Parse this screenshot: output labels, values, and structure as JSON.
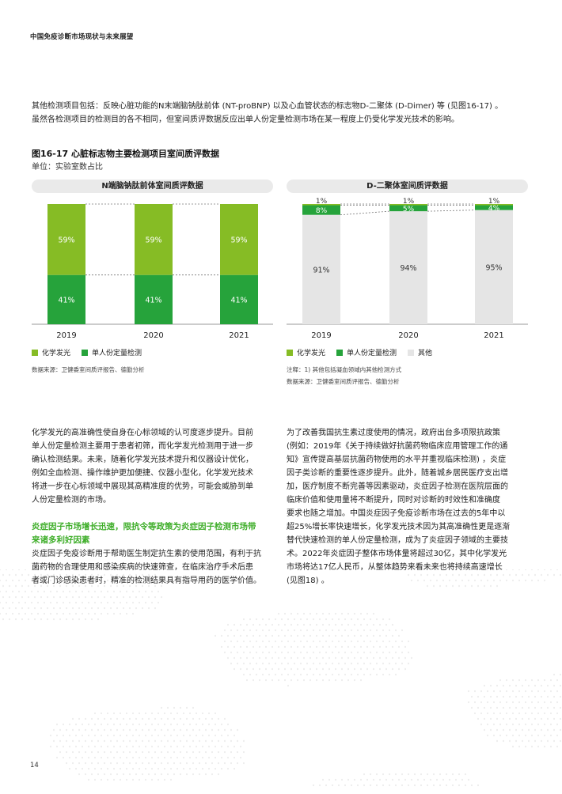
{
  "header": {
    "title": "中国免疫诊断市场现状与未来展望"
  },
  "intro": {
    "line1": "其他检测项目包括：反映心脏功能的N末端脑钠肽前体 (NT-proBNP) 以及心血管状态的标志物D-二聚体 (D-Dimer) 等 (见图16-17) 。",
    "line2": "虽然各检测项目的检测目的各不相同，但室间质评数据反应出单人份定量检测市场在某一程度上仍受化学发光技术的影响。"
  },
  "figure": {
    "title": "图16-17 心脏标志物主要检测项目室间质评数据",
    "unit": "单位：实验室数占比"
  },
  "colors": {
    "chem": "#86bc25",
    "single": "#26a33b",
    "other": "#e5e5e5",
    "accent": "#3fae2a"
  },
  "chart_data": [
    {
      "type": "bar",
      "stacked": true,
      "title": "N端脑钠肽前体室间质评数据",
      "categories": [
        "2019",
        "2020",
        "2021"
      ],
      "series": [
        {
          "name": "单人份定量检测",
          "values": [
            41,
            41,
            41
          ],
          "labels": [
            "41%",
            "41%",
            "41%"
          ]
        },
        {
          "name": "化学发光",
          "values": [
            59,
            59,
            59
          ],
          "labels": [
            "59%",
            "59%",
            "59%"
          ]
        }
      ],
      "ylim": [
        0,
        100
      ],
      "legend": [
        "化学发光",
        "单人份定量检测"
      ],
      "source": "数据来源：卫健委室间质评报告、德勤分析"
    },
    {
      "type": "bar",
      "stacked": true,
      "title": "D-二聚体室间质评数据",
      "categories": [
        "2019",
        "2020",
        "2021"
      ],
      "series": [
        {
          "name": "其他",
          "values": [
            91,
            94,
            95
          ],
          "labels": [
            "91%",
            "94%",
            "95%"
          ]
        },
        {
          "name": "单人份定量检测",
          "values": [
            8,
            5,
            4
          ],
          "labels": [
            "8%",
            "5%",
            "4%"
          ]
        },
        {
          "name": "化学发光",
          "values": [
            1,
            1,
            1
          ],
          "labels": [
            "1%",
            "1%",
            "1%"
          ]
        }
      ],
      "ylim": [
        0,
        100
      ],
      "legend": [
        "化学发光",
        "单人份定量检测",
        "其他"
      ],
      "note": "注释：1) 其他包括凝血领域内其他检测方式",
      "source": "数据来源：卫健委室间质评报告、德勤分析"
    }
  ],
  "left_column": {
    "paragraph1": [
      "化学发光的高准确性使自身在心标领域的认可度逐步提升。目前",
      "单人份定量检测主要用于患者初筛，而化学发光检测用于进一步",
      "确认检测结果。未来，随着化学发光技术提升和仪器设计优化，",
      "例如全血检测、操作维护更加便捷、仪器小型化，化学发光技术",
      "将进一步在心标领域中展现其高精准度的优势，可能会威胁到单",
      "人份定量检测的市场。"
    ],
    "subheading": [
      "炎症因子市场增长迅速，限抗令等政策为炎症因子检测市场带",
      "来诸多利好因素"
    ],
    "paragraph2": [
      "炎症因子免疫诊断用于帮助医生制定抗生素的使用范围，有利于抗",
      "菌药物的合理使用和感染疾病的快速筛查，在临床治疗手术后患",
      "者或门诊感染患者时，精准的检测结果具有指导用药的医学价值。"
    ]
  },
  "right_column": {
    "lines": [
      "为了改善我国抗生素过度使用的情况，政府出台多项限抗政策",
      "(例如：2019年《关于持续做好抗菌药物临床应用管理工作的通",
      "知》宣传提高基层抗菌药物使用的水平并重视临床检测) ，炎症",
      "因子类诊断的重要性逐步提升。此外，随着城乡居民医疗支出增",
      "加，医疗制度不断完善等因素驱动，炎症因子检测在医院层面的",
      "临床价值和使用量将不断提升，同时对诊断的时效性和准确度",
      "要求也随之增加。中国炎症因子免疫诊断市场在过去的5年中以",
      "超25%增长率快速增长，化学发光技术因为其高准确性更是逐渐",
      "替代快速检测的单人份定量检测，成为了炎症因子领域的主要技",
      "术。2022年炎症因子整体市场体量将超过30亿，其中化学发光",
      "市场将达17亿人民币，从整体趋势来看未来也将持续高速增长",
      "(见图18) 。"
    ]
  },
  "page_number": "14"
}
